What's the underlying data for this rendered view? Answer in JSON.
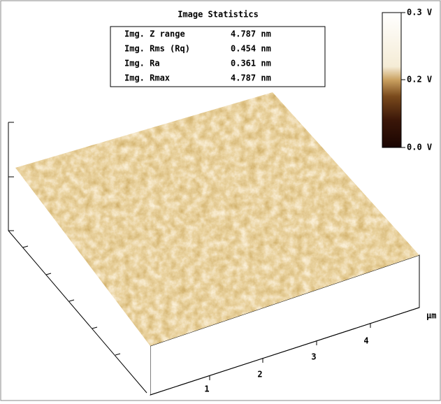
{
  "header": {
    "title": "Image Statistics"
  },
  "stats": {
    "rows": [
      [
        "Img. Z range",
        "4.787 nm"
      ],
      [
        "Img. Rms (Rq)",
        "0.454 nm"
      ],
      [
        "Img. Ra",
        "0.361 nm"
      ],
      [
        "Img. Rmax",
        "4.787 nm"
      ]
    ]
  },
  "colorbar": {
    "labels": [
      "0.3 V",
      "0.2 V",
      "0.0 V"
    ]
  },
  "axis": {
    "ticks": [
      "1",
      "2",
      "3",
      "4"
    ],
    "unit": "µm"
  }
}
